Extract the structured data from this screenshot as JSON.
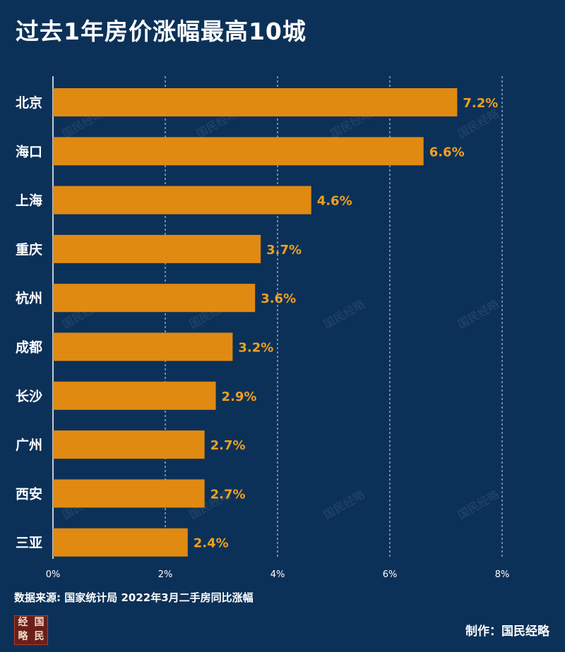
{
  "chart_data": {
    "type": "bar",
    "orientation": "horizontal",
    "title": "过去1年房价涨幅最高10城",
    "categories": [
      "北京",
      "海口",
      "上海",
      "重庆",
      "杭州",
      "成都",
      "长沙",
      "广州",
      "西安",
      "三亚"
    ],
    "values": [
      7.2,
      6.6,
      4.6,
      3.7,
      3.6,
      3.2,
      2.9,
      2.7,
      2.7,
      2.4
    ],
    "value_labels": [
      "7.2%",
      "6.6%",
      "4.6%",
      "3.7%",
      "3.6%",
      "3.2%",
      "2.9%",
      "2.7%",
      "2.7%",
      "2.4%"
    ],
    "xticks": [
      "0%",
      "2%",
      "4%",
      "6%",
      "8%"
    ],
    "xlim": [
      0,
      8
    ],
    "grid": "vertical dashed",
    "bar_color": "#e08a12",
    "label_color": "#f0a020",
    "background": "#0c3158"
  },
  "source": "数据来源: 国家统计局 2022年3月二手房同比涨幅",
  "credit": "制作：国民经略",
  "watermark": "国民经略",
  "logo_chars": [
    "经",
    "国",
    "略",
    "民"
  ]
}
